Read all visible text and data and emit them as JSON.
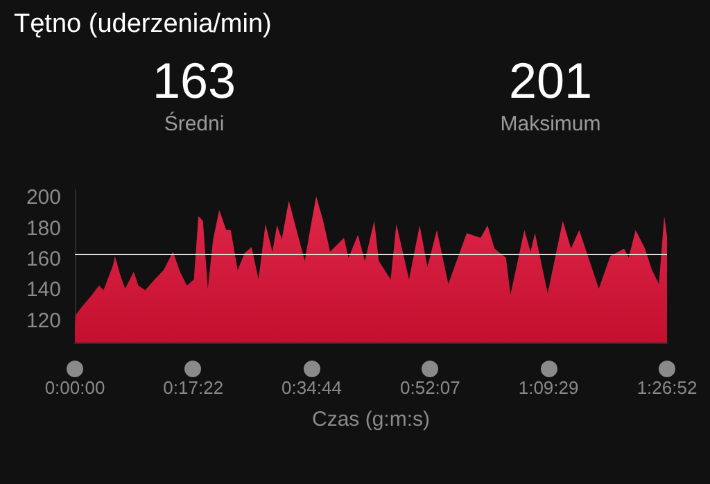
{
  "chart_data": {
    "type": "area",
    "title": "Tętno (uderzenia/min)",
    "xlabel": "Czas (g:m:s)",
    "annotations": [
      "163",
      "Średni",
      "201",
      "Maksimum"
    ],
    "series": [
      {
        "color": "#e0284a",
        "x": [
          0,
          0.0024,
          0.0136,
          0.042,
          0.059,
          0.07,
          0.093,
          0.098,
          0.112,
          0.123,
          0.144,
          0.155,
          0.172,
          0.195,
          0.217,
          0.24,
          0.257,
          0.274,
          0.291,
          0.302,
          0.313,
          0.325,
          0.338,
          0.353,
          0.37,
          0.381,
          0.398,
          0.415,
          0.432,
          0.449,
          0.466,
          0.483,
          0.494,
          0.506,
          0.523,
          0.539,
          0.562,
          0.573,
          0.59,
          0.607,
          0.624,
          0.658,
          0.669,
          0.692,
          0.709,
          0.732,
          0.743,
          0.772,
          0.786,
          0.817,
          0.843,
          0.862,
          0.885,
          0.913,
          0.958,
          0.992,
          1.009,
          1.026,
          1.054,
          1.065,
          1.099,
          1.114,
          1.125,
          1.156,
          1.193,
          1.213,
          1.233,
          1.281,
          1.309,
          1.343,
          1.354,
          1.371,
          1.394,
          1.411,
          1.428,
          1.441,
          1.4477
        ],
        "values": [
          118,
          124,
          128,
          137,
          143,
          140,
          156,
          162,
          149,
          141,
          152,
          143,
          140,
          147,
          153,
          165,
          152,
          143,
          147,
          188,
          185,
          141,
          173,
          192,
          179,
          179,
          153,
          164,
          168,
          147,
          183,
          165,
          182,
          173,
          198,
          182,
          159,
          176,
          201,
          185,
          165,
          174,
          161,
          176,
          159,
          185,
          159,
          147,
          183,
          147,
          182,
          155,
          179,
          144,
          177,
          174,
          182,
          167,
          161,
          137,
          179,
          165,
          177,
          138,
          185,
          167,
          179,
          141,
          162,
          167,
          161,
          179,
          167,
          153,
          144,
          188,
          175
        ]
      }
    ],
    "xlim": [
      0,
      1.447778
    ],
    "xticks": [
      {
        "value": 0,
        "label": "0:00:00"
      },
      {
        "value": 0.289444,
        "label": "0:17:22"
      },
      {
        "value": 0.578889,
        "label": "0:34:44"
      },
      {
        "value": 0.868611,
        "label": "0:52:07"
      },
      {
        "value": 1.158056,
        "label": "1:09:29"
      },
      {
        "value": 1.447778,
        "label": "1:26:52"
      }
    ],
    "ylim": [
      106,
      205
    ],
    "yticks": [
      120,
      140,
      160,
      180,
      200
    ],
    "ref_lines": [
      {
        "axis": "y",
        "value": 163,
        "label": null,
        "color": "#dddddd"
      }
    ],
    "grid": false,
    "marker": "none"
  }
}
